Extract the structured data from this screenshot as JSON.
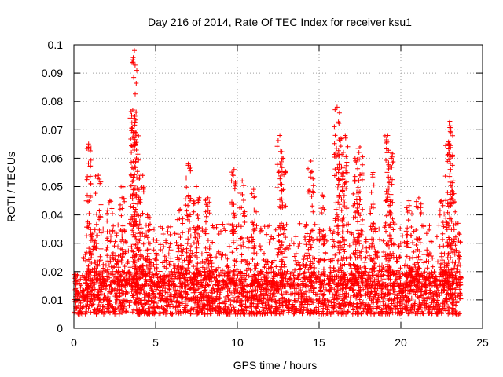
{
  "chart_data": {
    "type": "scatter",
    "title": "Day 216 of 2014, Rate Of TEC Index for receiver ksu1",
    "xlabel": "GPS time / hours",
    "ylabel": "ROTI / TECUs",
    "xlim": [
      0,
      25
    ],
    "ylim": [
      0,
      0.1
    ],
    "xticks": [
      0,
      5,
      10,
      15,
      20,
      25
    ],
    "yticks": [
      0,
      0.01,
      0.02,
      0.03,
      0.04,
      0.05,
      0.06,
      0.07,
      0.08,
      0.09,
      0.1
    ],
    "xtick_labels": [
      "0",
      "5",
      "10",
      "15",
      "20",
      "25"
    ],
    "ytick_labels": [
      "0",
      "0.01",
      "0.02",
      "0.03",
      "0.04",
      "0.05",
      "0.06",
      "0.07",
      "0.08",
      "0.09",
      "0.1"
    ],
    "grid": true,
    "marker": "+",
    "color": "#ff0000",
    "series": [
      {
        "name": "ROTI",
        "background_band": {
          "x_range": [
            0,
            23.7
          ],
          "y_typical": [
            0.005,
            0.02
          ]
        },
        "spikes": [
          {
            "x": 0.9,
            "y": 0.065
          },
          {
            "x": 1.5,
            "y": 0.054
          },
          {
            "x": 2.2,
            "y": 0.045
          },
          {
            "x": 3.0,
            "y": 0.05
          },
          {
            "x": 3.6,
            "y": 0.077
          },
          {
            "x": 3.7,
            "y": 0.098
          },
          {
            "x": 3.8,
            "y": 0.069
          },
          {
            "x": 4.1,
            "y": 0.054
          },
          {
            "x": 4.5,
            "y": 0.04
          },
          {
            "x": 6.5,
            "y": 0.042
          },
          {
            "x": 7.0,
            "y": 0.058
          },
          {
            "x": 7.5,
            "y": 0.05
          },
          {
            "x": 8.2,
            "y": 0.046
          },
          {
            "x": 9.8,
            "y": 0.056
          },
          {
            "x": 10.3,
            "y": 0.052
          },
          {
            "x": 11.0,
            "y": 0.049
          },
          {
            "x": 12.6,
            "y": 0.068
          },
          {
            "x": 12.8,
            "y": 0.06
          },
          {
            "x": 14.5,
            "y": 0.059
          },
          {
            "x": 15.2,
            "y": 0.047
          },
          {
            "x": 16.1,
            "y": 0.078
          },
          {
            "x": 16.3,
            "y": 0.067
          },
          {
            "x": 16.6,
            "y": 0.068
          },
          {
            "x": 17.2,
            "y": 0.06
          },
          {
            "x": 17.5,
            "y": 0.064
          },
          {
            "x": 18.3,
            "y": 0.055
          },
          {
            "x": 19.2,
            "y": 0.068
          },
          {
            "x": 19.4,
            "y": 0.062
          },
          {
            "x": 20.5,
            "y": 0.045
          },
          {
            "x": 21.1,
            "y": 0.046
          },
          {
            "x": 22.5,
            "y": 0.045
          },
          {
            "x": 22.9,
            "y": 0.065
          },
          {
            "x": 23.0,
            "y": 0.073
          },
          {
            "x": 23.2,
            "y": 0.052
          },
          {
            "x": 23.5,
            "y": 0.037
          }
        ]
      }
    ]
  }
}
